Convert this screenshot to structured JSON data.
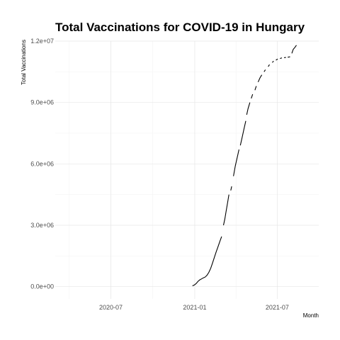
{
  "chart_data": {
    "type": "line",
    "title": "Total Vaccinations for COVID-19 in Hungary",
    "xlabel": "Month",
    "ylabel": "Total Vaccinations",
    "x_tick_labels": [
      "2020-07",
      "2021-01",
      "2021-07"
    ],
    "y_tick_labels": [
      "0.0e+00",
      "3.0e+06",
      "6.0e+06",
      "9.0e+06",
      "1.2e+07"
    ],
    "y_ticks": [
      0,
      3000000,
      6000000,
      9000000,
      12000000
    ],
    "xlim": [
      "2020-03-01",
      "2021-09-30"
    ],
    "ylim": [
      -600000,
      12000000
    ],
    "grid": true,
    "series": [
      {
        "segments": [
          [
            [
              "2020-12-27",
              40000
            ],
            [
              "2020-12-31",
              80000
            ],
            [
              "2021-01-04",
              150000
            ],
            [
              "2021-01-08",
              250000
            ],
            [
              "2021-01-12",
              330000
            ],
            [
              "2021-01-16",
              380000
            ],
            [
              "2021-01-20",
              430000
            ],
            [
              "2021-01-24",
              470000
            ],
            [
              "2021-01-28",
              560000
            ],
            [
              "2021-02-01",
              700000
            ],
            [
              "2021-02-05",
              900000
            ],
            [
              "2021-02-09",
              1150000
            ],
            [
              "2021-02-13",
              1430000
            ],
            [
              "2021-02-17",
              1700000
            ],
            [
              "2021-02-21",
              1950000
            ],
            [
              "2021-02-25",
              2200000
            ],
            [
              "2021-03-01",
              2450000
            ]
          ],
          [
            [
              "2021-03-05",
              3000000
            ],
            [
              "2021-03-08",
              3300000
            ],
            [
              "2021-03-11",
              3700000
            ],
            [
              "2021-03-14",
              4100000
            ],
            [
              "2021-03-17",
              4500000
            ]
          ],
          [
            [
              "2021-03-21",
              4700000
            ],
            [
              "2021-03-23",
              4900000
            ]
          ],
          [
            [
              "2021-03-27",
              5400000
            ],
            [
              "2021-03-31",
              5900000
            ],
            [
              "2021-04-04",
              6300000
            ],
            [
              "2021-04-08",
              6700000
            ]
          ],
          [
            [
              "2021-04-11",
              6900000
            ],
            [
              "2021-04-15",
              7300000
            ],
            [
              "2021-04-19",
              7700000
            ],
            [
              "2021-04-23",
              8100000
            ]
          ],
          [
            [
              "2021-04-25",
              8400000
            ],
            [
              "2021-04-28",
              8700000
            ],
            [
              "2021-05-02",
              9000000
            ]
          ],
          [
            [
              "2021-05-05",
              9200000
            ],
            [
              "2021-05-08",
              9400000
            ]
          ],
          [
            [
              "2021-05-13",
              9600000
            ],
            [
              "2021-05-16",
              9800000
            ]
          ],
          [
            [
              "2021-05-20",
              10000000
            ],
            [
              "2021-05-24",
              10200000
            ],
            [
              "2021-05-28",
              10350000
            ]
          ],
          [
            [
              "2021-06-02",
              10500000
            ],
            [
              "2021-06-05",
              10600000
            ]
          ],
          [
            [
              "2021-06-11",
              10750000
            ],
            [
              "2021-06-14",
              10850000
            ]
          ],
          [
            [
              "2021-06-20",
              10950000
            ],
            [
              "2021-06-23",
              11020000
            ]
          ],
          [
            [
              "2021-06-28",
              11070000
            ],
            [
              "2021-07-02",
              11120000
            ]
          ],
          [
            [
              "2021-07-07",
              11150000
            ],
            [
              "2021-07-11",
              11180000
            ]
          ],
          [
            [
              "2021-07-16",
              11190000
            ],
            [
              "2021-07-20",
              11200000
            ]
          ],
          [
            [
              "2021-07-24",
              11210000
            ],
            [
              "2021-07-29",
              11230000
            ]
          ],
          [
            [
              "2021-08-02",
              11400000
            ],
            [
              "2021-08-05",
              11600000
            ],
            [
              "2021-08-09",
              11700000
            ],
            [
              "2021-08-12",
              11800000
            ]
          ]
        ]
      }
    ]
  }
}
